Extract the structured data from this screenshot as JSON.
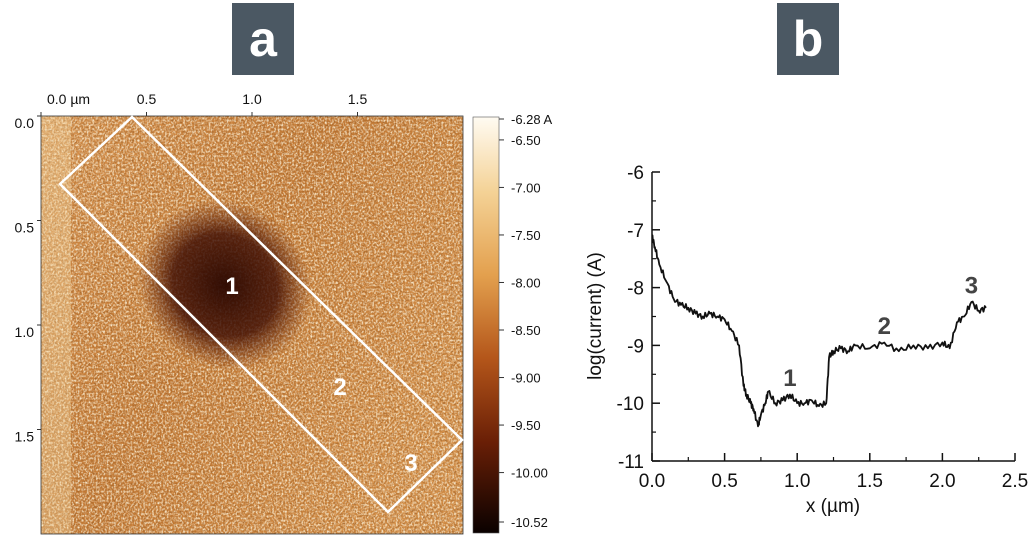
{
  "panels": {
    "a": "a",
    "b": "b"
  },
  "colors": {
    "tag_bg": "#4b5863",
    "tag_fg": "#ffffff",
    "line": "#111111",
    "box": "#ffffff"
  },
  "map": {
    "x_ticks": [
      {
        "label": "0.0 µm",
        "value": 0.0
      },
      {
        "label": "0.5",
        "value": 0.5
      },
      {
        "label": "1.0",
        "value": 1.0
      },
      {
        "label": "1.5",
        "value": 1.5
      }
    ],
    "y_ticks": [
      {
        "label": "0.0",
        "value": 0.0
      },
      {
        "label": "0.5",
        "value": 0.5
      },
      {
        "label": "1.0",
        "value": 1.0
      },
      {
        "label": "1.5",
        "value": 1.5
      }
    ],
    "extent_um": [
      0,
      2.0
    ],
    "region_labels": [
      "1",
      "2",
      "3"
    ],
    "colorbar": {
      "range": [
        -10.52,
        -6.28
      ],
      "labels": [
        "-6.28 A",
        "-6.50",
        "-7.00",
        "-7.50",
        "-8.00",
        "-8.50",
        "-9.00",
        "-9.50",
        "-10.00",
        "-10.52"
      ],
      "values": [
        -6.28,
        -6.5,
        -7.0,
        -7.5,
        -8.0,
        -8.5,
        -9.0,
        -9.5,
        -10.0,
        -10.52
      ]
    }
  },
  "chart_data": {
    "type": "line",
    "xlabel": "x (µm)",
    "ylabel": "log(current) (A)",
    "xlim": [
      0,
      2.5
    ],
    "ylim": [
      -11,
      -6
    ],
    "x_ticks": [
      "0.0",
      "0.5",
      "1.0",
      "1.5",
      "2.0",
      "2.5"
    ],
    "y_ticks": [
      "-6",
      "-7",
      "-8",
      "-9",
      "-10",
      "-11"
    ],
    "annotations": [
      {
        "text": "1",
        "x": 0.95,
        "y": -9.7
      },
      {
        "text": "2",
        "x": 1.6,
        "y": -8.8
      },
      {
        "text": "3",
        "x": 2.2,
        "y": -8.1
      }
    ],
    "series": [
      {
        "x": [
          0.0,
          0.02,
          0.05,
          0.1,
          0.15,
          0.2,
          0.25,
          0.3,
          0.35,
          0.4,
          0.45,
          0.5,
          0.55,
          0.6,
          0.63,
          0.65,
          0.68,
          0.7,
          0.73,
          0.75,
          0.78,
          0.8,
          0.85,
          0.9,
          0.95,
          1.0,
          1.05,
          1.1,
          1.15,
          1.2,
          1.22,
          1.25,
          1.3,
          1.35,
          1.4,
          1.5,
          1.6,
          1.7,
          1.8,
          1.9,
          2.0,
          2.05,
          2.1,
          2.15,
          2.2,
          2.25,
          2.3
        ],
        "y": [
          -7.1,
          -7.3,
          -7.6,
          -7.9,
          -8.2,
          -8.3,
          -8.35,
          -8.45,
          -8.5,
          -8.45,
          -8.5,
          -8.55,
          -8.75,
          -9.0,
          -9.7,
          -9.85,
          -10.0,
          -10.1,
          -10.4,
          -10.2,
          -10.0,
          -9.8,
          -10.0,
          -9.95,
          -9.85,
          -10.0,
          -10.0,
          -9.95,
          -10.05,
          -10.0,
          -9.2,
          -9.1,
          -9.05,
          -9.1,
          -9.0,
          -9.05,
          -8.95,
          -9.1,
          -9.0,
          -9.05,
          -8.95,
          -9.05,
          -8.6,
          -8.5,
          -8.25,
          -8.4,
          -8.35
        ]
      }
    ]
  }
}
